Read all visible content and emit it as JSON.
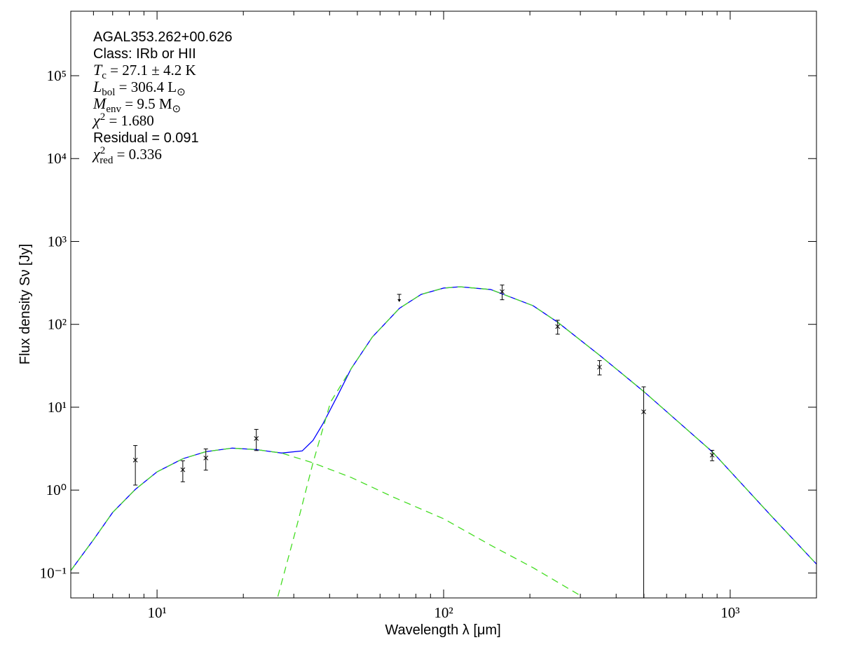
{
  "chart_data": {
    "type": "sed",
    "xscale": "log",
    "yscale": "log",
    "xlabel": "Wavelength λ [μm]",
    "ylabel": "Flux density Sν [Jy]",
    "xlim": [
      5,
      2000
    ],
    "ylim": [
      0.05,
      600000
    ],
    "xticks": [
      {
        "value": 10,
        "label": "10¹"
      },
      {
        "value": 100,
        "label": "10²"
      },
      {
        "value": 1000,
        "label": "10³"
      }
    ],
    "yticks": [
      {
        "value": 0.1,
        "label": "10⁻¹"
      },
      {
        "value": 1,
        "label": "10⁰"
      },
      {
        "value": 10,
        "label": "10¹"
      },
      {
        "value": 100,
        "label": "10²"
      },
      {
        "value": 1000,
        "label": "10³"
      },
      {
        "value": 10000,
        "label": "10⁴"
      },
      {
        "value": 100000,
        "label": "10⁵"
      }
    ],
    "annotations": [
      [
        {
          "text": "AGAL353.262+00.626"
        }
      ],
      [
        {
          "text": "Class: IRb or HII"
        }
      ],
      [
        {
          "text": "T",
          "style": "italic"
        },
        {
          "text": "c",
          "style": "sub"
        },
        {
          "text": " = 27.1 ± 4.2 K",
          "style": "serif"
        }
      ],
      [
        {
          "text": "L",
          "style": "italic"
        },
        {
          "text": "bol",
          "style": "sub"
        },
        {
          "text": " = 306.4 L",
          "style": "serif"
        },
        {
          "text": "⊙",
          "style": "sub"
        }
      ],
      [
        {
          "text": "M",
          "style": "italic"
        },
        {
          "text": "env",
          "style": "sub"
        },
        {
          "text": " = 9.5 M",
          "style": "serif"
        },
        {
          "text": "⊙",
          "style": "sub"
        }
      ],
      [
        {
          "text": "χ",
          "style": "italic"
        },
        {
          "text": "2",
          "style": "sup"
        },
        {
          "text": " = 1.680",
          "style": "serif"
        }
      ],
      [
        {
          "text": "Residual = 0.091"
        }
      ],
      [
        {
          "text": "χ",
          "style": "italic"
        },
        {
          "text": "2",
          "style": "sup"
        },
        {
          "text": "red",
          "style": "subback"
        },
        {
          "text": " = 0.336",
          "style": "serif"
        }
      ]
    ],
    "curves": [
      {
        "color": "#0000ff",
        "dashed": false,
        "x": [
          5,
          6,
          7,
          8.4,
          10,
          12.3,
          14.8,
          18.3,
          22.2,
          27.2,
          32.1,
          35,
          38,
          42.6,
          47.6,
          56.4,
          70.1,
          83.5,
          100,
          114,
          146,
          205,
          250,
          350,
          499,
          865,
          1384,
          2000
        ],
        "values": [
          0.107,
          0.252,
          0.537,
          1.02,
          1.66,
          2.39,
          2.91,
          3.21,
          3.08,
          2.8,
          2.97,
          3.97,
          6.4,
          13.7,
          29.3,
          70.3,
          156,
          230,
          274,
          284,
          263,
          168,
          106,
          42.4,
          15.5,
          2.91,
          0.497,
          0.128
        ]
      },
      {
        "color": "#44dd22",
        "dashed": true,
        "x": [
          5,
          6,
          7,
          8.4,
          10,
          12.3,
          14.8,
          18.3,
          22.2,
          27.2,
          35,
          47.6,
          66.7,
          100,
          146,
          205,
          304
        ],
        "values": [
          0.107,
          0.252,
          0.537,
          1.02,
          1.66,
          2.39,
          2.91,
          3.21,
          3.08,
          2.8,
          2.13,
          1.42,
          0.824,
          0.451,
          0.216,
          0.116,
          0.052
        ]
      },
      {
        "color": "#44dd22",
        "dashed": true,
        "x": [
          26.4,
          30.4,
          35,
          40.3,
          47.6,
          56.4,
          70.1,
          83.5,
          100,
          114,
          146,
          205,
          250,
          350,
          499,
          865,
          1384,
          2000
        ],
        "values": [
          0.052,
          0.318,
          2.13,
          11.5,
          29.3,
          70.3,
          156,
          230,
          274,
          284,
          263,
          168,
          106,
          42.4,
          15.5,
          2.91,
          0.497,
          0.128
        ]
      }
    ],
    "points": {
      "x": [
        8.4,
        12.3,
        14.8,
        22.2,
        160,
        250,
        350,
        499,
        865
      ],
      "values": [
        2.3,
        1.76,
        2.44,
        4.2,
        248,
        94,
        30.5,
        8.8,
        2.64
      ],
      "errors": [
        1.15,
        0.5,
        0.7,
        1.2,
        50,
        18,
        6,
        8.8,
        0.38
      ]
    },
    "upper_limits": {
      "x": [
        70
      ],
      "values": [
        230
      ]
    }
  }
}
